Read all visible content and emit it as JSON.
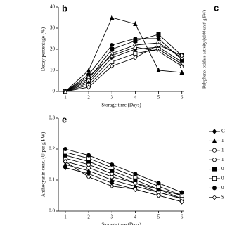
{
  "chart_data": [
    {
      "type": "line",
      "panel_label": "b",
      "xlabel": "Storage time (Days)",
      "ylabel": "Decay percentage (%)",
      "x": [
        1,
        2,
        3,
        4,
        5,
        6
      ],
      "xlim": [
        0.7,
        6.1
      ],
      "xticks": [
        1,
        2,
        3,
        4,
        5,
        6
      ],
      "ylim": [
        0,
        40
      ],
      "yticks": [
        0,
        10,
        20,
        30,
        40
      ],
      "color": "#000000",
      "series": [
        {
          "marker": "triangle-filled",
          "values": [
            0,
            10,
            35,
            32,
            10,
            9
          ]
        },
        {
          "marker": "circle-filled",
          "values": [
            0,
            8,
            22,
            25,
            25,
            15
          ]
        },
        {
          "marker": "square-filled",
          "values": [
            0,
            6,
            20,
            24,
            27,
            17
          ]
        },
        {
          "marker": "circle-open",
          "values": [
            0,
            5,
            18,
            22,
            23,
            16
          ]
        },
        {
          "marker": "diamond-filled",
          "values": [
            0,
            4,
            16,
            20,
            21,
            14
          ]
        },
        {
          "marker": "square-open",
          "values": [
            0,
            3,
            14,
            18,
            20,
            13
          ]
        },
        {
          "marker": "diamond-open",
          "values": [
            0,
            2,
            12,
            16,
            22,
            17
          ]
        },
        {
          "marker": "triangle-open",
          "values": [
            0,
            7,
            17,
            21,
            19,
            12
          ]
        }
      ]
    },
    {
      "type": "line",
      "panel_label": "e",
      "xlabel": "Storage time (Days)",
      "ylabel": "Anthocyanin conc. (U per g FW)",
      "x": [
        1,
        2,
        3,
        4,
        5,
        6
      ],
      "xlim": [
        0.7,
        6.1
      ],
      "xticks": [
        1,
        2,
        3,
        4,
        5,
        6
      ],
      "ylim": [
        0,
        0.3
      ],
      "yticks": [
        {
          "value": 0,
          "label": "0.0"
        },
        0.1,
        0.2,
        0.3
      ],
      "color": "#000000",
      "legend": "right",
      "series": [
        {
          "name": "C",
          "marker": "diamond-filled",
          "values": [
            0.14,
            0.12,
            0.09,
            0.07,
            0.05,
            0.03
          ]
        },
        {
          "name": "1",
          "marker": "triangle-filled",
          "values": [
            0.15,
            0.13,
            0.1,
            0.08,
            0.06,
            0.04
          ]
        },
        {
          "name": "1",
          "marker": "circle-open",
          "values": [
            0.16,
            0.14,
            0.11,
            0.09,
            0.06,
            0.04
          ]
        },
        {
          "name": "1",
          "marker": "circle-open",
          "values": [
            0.17,
            0.15,
            0.12,
            0.09,
            0.07,
            0.04
          ]
        },
        {
          "name": "0",
          "marker": "square-filled",
          "values": [
            0.18,
            0.16,
            0.13,
            0.1,
            0.07,
            0.05
          ]
        },
        {
          "name": "0",
          "marker": "square-open",
          "values": [
            0.19,
            0.17,
            0.14,
            0.11,
            0.08,
            0.05
          ]
        },
        {
          "name": "0",
          "marker": "circle-filled",
          "values": [
            0.2,
            0.18,
            0.15,
            0.12,
            0.09,
            0.06
          ]
        },
        {
          "name": "S",
          "marker": "diamond-open",
          "values": [
            0.16,
            0.11,
            0.08,
            0.07,
            0.05,
            0.03
          ]
        }
      ]
    }
  ],
  "panel_c": {
    "label": "c",
    "ylabel": "Polyphenol oxidase activity (x100 unit/ g FW)"
  }
}
